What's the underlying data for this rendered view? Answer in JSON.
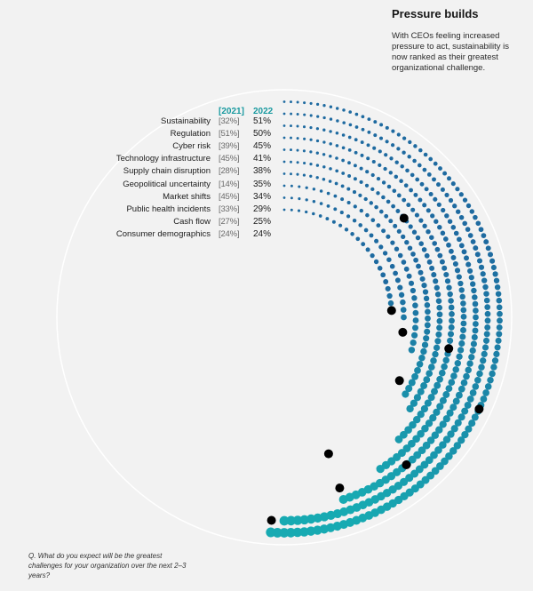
{
  "header": {
    "title": "Pressure builds",
    "description": "With CEOs feeling increased pressure to act, sustainability is now ranked as their greatest organizational challenge."
  },
  "legend": {
    "prev_year": "[2021]",
    "cur_year": "2022"
  },
  "footnote": "Q. What do you expect will be the greatest challenges for your organization over the next 2–3 years?",
  "colors": {
    "dark": "#1e6aa0",
    "light": "#17aab2",
    "marker": "#000000",
    "outer_ring": "#ffffff"
  },
  "chart_data": {
    "type": "radial-dot",
    "categories": [
      "Sustainability",
      "Regulation",
      "Cyber risk",
      "Technology infrastructure",
      "Supply chain disruption",
      "Geopolitical uncertainty",
      "Market shifts",
      "Public health incidents",
      "Cash flow",
      "Consumer demographics"
    ],
    "series": [
      {
        "name": "2022",
        "values": [
          51,
          50,
          45,
          41,
          38,
          35,
          34,
          29,
          25,
          24
        ]
      },
      {
        "name": "2021",
        "values": [
          32,
          51,
          39,
          45,
          28,
          14,
          45,
          33,
          27,
          24
        ]
      }
    ],
    "rows": [
      {
        "label": "Sustainability",
        "prev": "[32%]",
        "cur": "51%"
      },
      {
        "label": "Regulation",
        "prev": "[51%]",
        "cur": "50%"
      },
      {
        "label": "Cyber risk",
        "prev": "[39%]",
        "cur": "45%"
      },
      {
        "label": "Technology infrastructure",
        "prev": "[45%]",
        "cur": "41%"
      },
      {
        "label": "Supply chain disruption",
        "prev": "[28%]",
        "cur": "38%"
      },
      {
        "label": "Geopolitical uncertainty",
        "prev": "[14%]",
        "cur": "35%"
      },
      {
        "label": "Market shifts",
        "prev": "[45%]",
        "cur": "34%"
      },
      {
        "label": "Public health incidents",
        "prev": "[33%]",
        "cur": "29%"
      },
      {
        "label": "Cash flow",
        "prev": "[27%]",
        "cur": "25%"
      },
      {
        "label": "Consumer demographics",
        "prev": "[24%]",
        "cur": "24%"
      }
    ]
  }
}
